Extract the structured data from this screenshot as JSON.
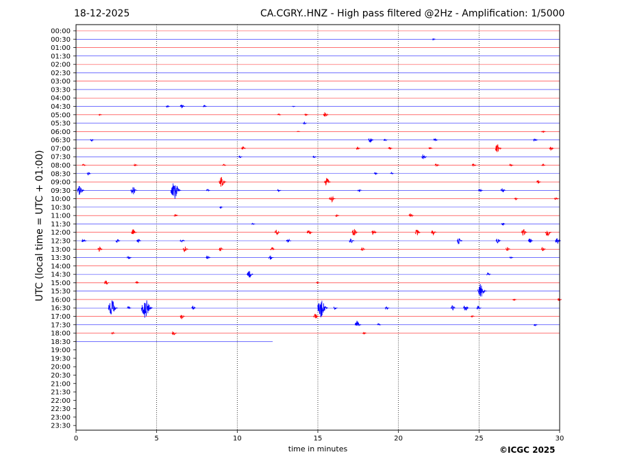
{
  "header": {
    "date": "18-12-2025",
    "title": "CA.CGRY..HNZ - High pass filtered @2Hz - Amplification: 1/5000"
  },
  "footer": {
    "credit": "©ICGC 2025"
  },
  "chart_data": {
    "type": "line",
    "title": "CA.CGRY..HNZ - High pass filtered @2Hz - Amplification: 1/5000",
    "xlabel": "time in minutes",
    "ylabel": "UTC (local time = UTC + 01:00)",
    "xlim": [
      0,
      30
    ],
    "x_ticks": [
      0,
      5,
      10,
      15,
      20,
      25,
      30
    ],
    "x_grid_at": [
      5,
      10,
      15,
      20,
      25
    ],
    "grid": "dotted vertical lines",
    "trace_colors": [
      "#ff0000",
      "#0000ff"
    ],
    "rows": [
      "00:00",
      "00:30",
      "01:00",
      "01:30",
      "02:00",
      "02:30",
      "03:00",
      "03:30",
      "04:00",
      "04:30",
      "05:00",
      "05:30",
      "06:00",
      "06:30",
      "07:00",
      "07:30",
      "08:00",
      "08:30",
      "09:00",
      "09:30",
      "10:00",
      "10:30",
      "11:00",
      "11:30",
      "12:00",
      "12:30",
      "13:00",
      "13:30",
      "14:00",
      "14:30",
      "15:00",
      "15:30",
      "16:00",
      "16:30",
      "17:00",
      "17:30",
      "18:00",
      "18:30",
      "19:00",
      "19:30",
      "20:00",
      "20:30",
      "21:00",
      "21:30",
      "22:00",
      "22:30",
      "23:00",
      "23:30"
    ],
    "last_data": {
      "row": "18:30",
      "minutes": 12.2
    },
    "events": [
      {
        "row": "00:30",
        "t": 22.2,
        "amp": 0.2
      },
      {
        "row": "04:30",
        "t": 5.7,
        "amp": 0.3
      },
      {
        "row": "04:30",
        "t": 6.6,
        "amp": 0.6
      },
      {
        "row": "04:30",
        "t": 8.0,
        "amp": 0.3
      },
      {
        "row": "04:30",
        "t": 13.5,
        "amp": 0.15
      },
      {
        "row": "05:00",
        "t": 1.5,
        "amp": 0.2
      },
      {
        "row": "05:00",
        "t": 12.6,
        "amp": 0.25
      },
      {
        "row": "05:00",
        "t": 14.3,
        "amp": 0.3
      },
      {
        "row": "05:00",
        "t": 15.5,
        "amp": 0.7
      },
      {
        "row": "05:30",
        "t": 14.2,
        "amp": 0.3
      },
      {
        "row": "06:00",
        "t": 13.8,
        "amp": 0.15
      },
      {
        "row": "06:00",
        "t": 29.0,
        "amp": 0.4
      },
      {
        "row": "06:30",
        "t": 1.0,
        "amp": 0.3
      },
      {
        "row": "06:30",
        "t": 18.3,
        "amp": 0.7
      },
      {
        "row": "06:30",
        "t": 19.2,
        "amp": 0.3
      },
      {
        "row": "06:30",
        "t": 22.3,
        "amp": 0.5
      },
      {
        "row": "06:30",
        "t": 28.5,
        "amp": 0.5
      },
      {
        "row": "07:00",
        "t": 10.4,
        "amp": 0.5
      },
      {
        "row": "07:00",
        "t": 17.5,
        "amp": 0.4
      },
      {
        "row": "07:00",
        "t": 19.5,
        "amp": 0.4
      },
      {
        "row": "07:00",
        "t": 22.0,
        "amp": 0.3
      },
      {
        "row": "07:00",
        "t": 26.2,
        "amp": 1.1
      },
      {
        "row": "07:00",
        "t": 29.5,
        "amp": 0.6
      },
      {
        "row": "07:30",
        "t": 10.2,
        "amp": 0.3
      },
      {
        "row": "07:30",
        "t": 14.8,
        "amp": 0.3
      },
      {
        "row": "07:30",
        "t": 21.6,
        "amp": 0.7
      },
      {
        "row": "08:00",
        "t": 0.5,
        "amp": 0.3
      },
      {
        "row": "08:00",
        "t": 3.7,
        "amp": 0.3
      },
      {
        "row": "08:00",
        "t": 9.2,
        "amp": 0.25
      },
      {
        "row": "08:00",
        "t": 22.4,
        "amp": 0.5
      },
      {
        "row": "08:00",
        "t": 24.7,
        "amp": 0.4
      },
      {
        "row": "08:00",
        "t": 27.0,
        "amp": 0.4
      },
      {
        "row": "08:00",
        "t": 29.0,
        "amp": 0.3
      },
      {
        "row": "08:30",
        "t": 0.8,
        "amp": 0.4
      },
      {
        "row": "08:30",
        "t": 18.6,
        "amp": 0.3
      },
      {
        "row": "08:30",
        "t": 19.6,
        "amp": 0.3
      },
      {
        "row": "09:00",
        "t": 9.1,
        "amp": 1.3
      },
      {
        "row": "09:00",
        "t": 15.6,
        "amp": 1.1
      },
      {
        "row": "09:00",
        "t": 28.7,
        "amp": 0.5
      },
      {
        "row": "09:30",
        "t": 0.3,
        "amp": 1.2
      },
      {
        "row": "09:30",
        "t": 3.6,
        "amp": 1.1
      },
      {
        "row": "09:30",
        "t": 6.2,
        "amp": 2.2
      },
      {
        "row": "09:30",
        "t": 8.2,
        "amp": 0.3
      },
      {
        "row": "09:30",
        "t": 12.6,
        "amp": 0.3
      },
      {
        "row": "09:30",
        "t": 17.6,
        "amp": 0.4
      },
      {
        "row": "09:30",
        "t": 25.1,
        "amp": 0.5
      },
      {
        "row": "09:30",
        "t": 26.5,
        "amp": 0.6
      },
      {
        "row": "10:00",
        "t": 15.9,
        "amp": 1.0
      },
      {
        "row": "10:00",
        "t": 27.3,
        "amp": 0.3
      },
      {
        "row": "10:00",
        "t": 29.8,
        "amp": 0.4
      },
      {
        "row": "10:30",
        "t": 9.0,
        "amp": 0.2
      },
      {
        "row": "11:00",
        "t": 6.2,
        "amp": 0.4
      },
      {
        "row": "11:00",
        "t": 16.2,
        "amp": 0.4
      },
      {
        "row": "11:00",
        "t": 20.8,
        "amp": 0.6
      },
      {
        "row": "11:30",
        "t": 11.0,
        "amp": 0.2
      },
      {
        "row": "11:30",
        "t": 26.5,
        "amp": 0.3
      },
      {
        "row": "12:00",
        "t": 3.6,
        "amp": 0.8
      },
      {
        "row": "12:00",
        "t": 12.5,
        "amp": 0.7
      },
      {
        "row": "12:00",
        "t": 14.5,
        "amp": 0.8
      },
      {
        "row": "12:00",
        "t": 17.3,
        "amp": 0.9
      },
      {
        "row": "12:00",
        "t": 18.5,
        "amp": 0.7
      },
      {
        "row": "12:00",
        "t": 21.2,
        "amp": 0.8
      },
      {
        "row": "12:00",
        "t": 22.2,
        "amp": 0.7
      },
      {
        "row": "12:00",
        "t": 27.8,
        "amp": 0.9
      },
      {
        "row": "12:00",
        "t": 29.3,
        "amp": 1.0
      },
      {
        "row": "12:30",
        "t": 0.5,
        "amp": 0.6
      },
      {
        "row": "12:30",
        "t": 2.6,
        "amp": 0.5
      },
      {
        "row": "12:30",
        "t": 3.9,
        "amp": 0.5
      },
      {
        "row": "12:30",
        "t": 6.6,
        "amp": 0.6
      },
      {
        "row": "12:30",
        "t": 13.2,
        "amp": 0.6
      },
      {
        "row": "12:30",
        "t": 17.1,
        "amp": 0.7
      },
      {
        "row": "12:30",
        "t": 23.8,
        "amp": 0.8
      },
      {
        "row": "12:30",
        "t": 26.2,
        "amp": 0.7
      },
      {
        "row": "12:30",
        "t": 28.2,
        "amp": 0.6
      },
      {
        "row": "12:30",
        "t": 29.9,
        "amp": 0.8
      },
      {
        "row": "13:00",
        "t": 1.5,
        "amp": 0.6
      },
      {
        "row": "13:00",
        "t": 6.8,
        "amp": 0.7
      },
      {
        "row": "13:00",
        "t": 9.0,
        "amp": 0.5
      },
      {
        "row": "13:00",
        "t": 12.2,
        "amp": 0.5
      },
      {
        "row": "13:00",
        "t": 17.8,
        "amp": 0.5
      },
      {
        "row": "13:00",
        "t": 26.8,
        "amp": 0.5
      },
      {
        "row": "13:00",
        "t": 29.0,
        "amp": 0.5
      },
      {
        "row": "13:30",
        "t": 3.3,
        "amp": 0.5
      },
      {
        "row": "13:30",
        "t": 8.2,
        "amp": 0.5
      },
      {
        "row": "13:30",
        "t": 12.1,
        "amp": 0.6
      },
      {
        "row": "13:30",
        "t": 27.0,
        "amp": 0.3
      },
      {
        "row": "14:30",
        "t": 10.8,
        "amp": 1.0
      },
      {
        "row": "14:30",
        "t": 25.6,
        "amp": 0.5
      },
      {
        "row": "15:00",
        "t": 1.9,
        "amp": 0.6
      },
      {
        "row": "15:00",
        "t": 3.8,
        "amp": 0.3
      },
      {
        "row": "15:00",
        "t": 15.0,
        "amp": 0.2
      },
      {
        "row": "15:30",
        "t": 25.2,
        "amp": 1.8
      },
      {
        "row": "16:00",
        "t": 27.2,
        "amp": 0.3
      },
      {
        "row": "16:00",
        "t": 30.0,
        "amp": 0.4
      },
      {
        "row": "16:30",
        "t": 2.3,
        "amp": 2.0
      },
      {
        "row": "16:30",
        "t": 3.3,
        "amp": 0.4
      },
      {
        "row": "16:30",
        "t": 4.4,
        "amp": 2.5
      },
      {
        "row": "16:30",
        "t": 7.3,
        "amp": 0.5
      },
      {
        "row": "16:30",
        "t": 15.3,
        "amp": 2.3
      },
      {
        "row": "16:30",
        "t": 16.1,
        "amp": 0.4
      },
      {
        "row": "16:30",
        "t": 19.3,
        "amp": 0.5
      },
      {
        "row": "16:30",
        "t": 23.4,
        "amp": 0.6
      },
      {
        "row": "16:30",
        "t": 24.2,
        "amp": 0.8
      },
      {
        "row": "16:30",
        "t": 25.0,
        "amp": 0.6
      },
      {
        "row": "17:00",
        "t": 6.6,
        "amp": 0.6
      },
      {
        "row": "17:00",
        "t": 14.9,
        "amp": 0.7
      },
      {
        "row": "17:00",
        "t": 24.6,
        "amp": 0.3
      },
      {
        "row": "17:30",
        "t": 17.5,
        "amp": 1.0
      },
      {
        "row": "17:30",
        "t": 18.8,
        "amp": 0.3
      },
      {
        "row": "17:30",
        "t": 28.5,
        "amp": 0.3
      },
      {
        "row": "18:00",
        "t": 2.3,
        "amp": 0.3
      },
      {
        "row": "18:00",
        "t": 6.1,
        "amp": 0.6
      },
      {
        "row": "18:00",
        "t": 17.9,
        "amp": 0.3
      }
    ]
  }
}
